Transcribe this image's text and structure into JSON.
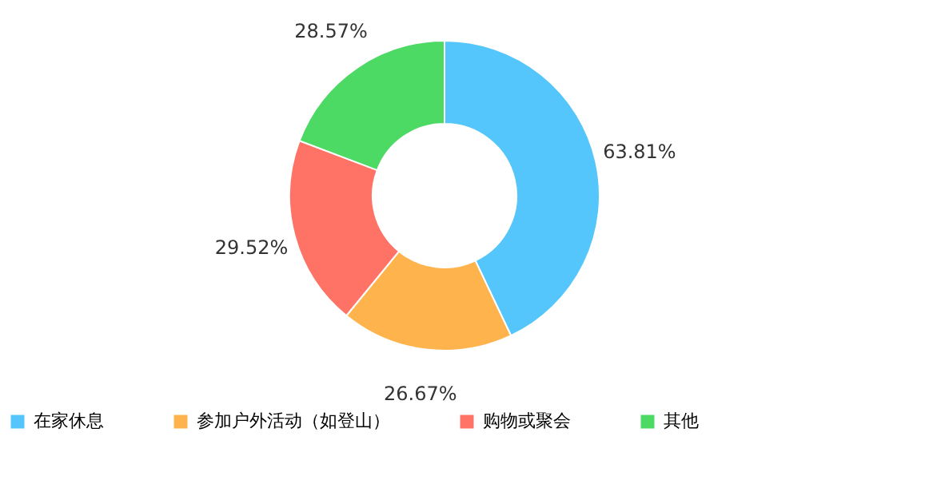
{
  "chart_data": {
    "type": "donut",
    "categories": [
      "在家休息",
      "参加户外活动（如登山）",
      "购物或聚会",
      "其他"
    ],
    "values": [
      63.81,
      26.67,
      29.52,
      28.57
    ],
    "value_labels": [
      "63.81%",
      "26.67%",
      "29.52%",
      "28.57%"
    ],
    "colors": [
      "#55c6fb",
      "#ffb34d",
      "#ff7366",
      "#4cd964"
    ],
    "legend": "bottom"
  }
}
